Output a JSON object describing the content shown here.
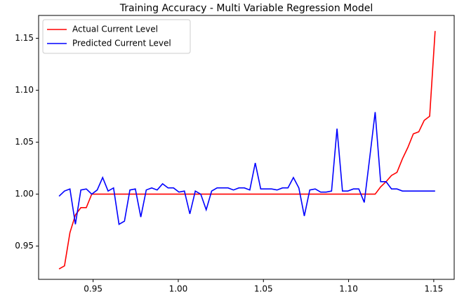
{
  "chart_data": {
    "type": "line",
    "title": "Training Accuracy - Multi Variable Regression Model",
    "x": [
      0.93,
      0.9332,
      0.9364,
      0.9396,
      0.9428,
      0.946,
      0.9492,
      0.9524,
      0.9556,
      0.9588,
      0.962,
      0.9652,
      0.9684,
      0.9716,
      0.9748,
      0.978,
      0.9812,
      0.9844,
      0.9876,
      0.9908,
      0.994,
      0.9972,
      1.0004,
      1.0036,
      1.0068,
      1.01,
      1.0132,
      1.0164,
      1.0196,
      1.0228,
      1.026,
      1.0292,
      1.0324,
      1.0356,
      1.0388,
      1.042,
      1.0452,
      1.0484,
      1.0516,
      1.0548,
      1.058,
      1.0612,
      1.0644,
      1.0676,
      1.0708,
      1.074,
      1.0772,
      1.0804,
      1.0836,
      1.0868,
      1.09,
      1.0932,
      1.0964,
      1.0996,
      1.1028,
      1.106,
      1.1092,
      1.1124,
      1.1156,
      1.1188,
      1.122,
      1.1252,
      1.1284,
      1.1316,
      1.1348,
      1.138,
      1.1412,
      1.1444,
      1.1476,
      1.1508
    ],
    "series": [
      {
        "name": "Actual Current Level",
        "color": "#ff0000",
        "values": [
          0.928,
          0.931,
          0.963,
          0.98,
          0.987,
          0.987,
          1.0,
          1.0,
          1.0,
          1.0,
          1.0,
          1.0,
          1.0,
          1.0,
          1.0,
          1.0,
          1.0,
          1.0,
          1.0,
          1.0,
          1.0,
          1.0,
          1.0,
          1.0,
          1.0,
          1.0,
          1.0,
          1.0,
          1.0,
          1.0,
          1.0,
          1.0,
          1.0,
          1.0,
          1.0,
          1.0,
          1.0,
          1.0,
          1.0,
          1.0,
          1.0,
          1.0,
          1.0,
          1.0,
          1.0,
          1.0,
          1.0,
          1.0,
          1.0,
          1.0,
          1.0,
          1.0,
          1.0,
          1.0,
          1.0,
          1.0,
          1.0,
          1.0,
          1.0,
          1.007,
          1.012,
          1.018,
          1.021,
          1.034,
          1.045,
          1.058,
          1.06,
          1.071,
          1.075,
          1.157
        ]
      },
      {
        "name": "Predicted Current Level",
        "color": "#0000ff",
        "values": [
          0.998,
          1.003,
          1.005,
          0.971,
          1.004,
          1.005,
          1.0,
          1.004,
          1.016,
          1.003,
          1.006,
          0.971,
          0.974,
          1.004,
          1.005,
          0.978,
          1.004,
          1.006,
          1.004,
          1.01,
          1.006,
          1.006,
          1.002,
          1.003,
          0.981,
          1.003,
          1.0,
          0.985,
          1.003,
          1.006,
          1.006,
          1.006,
          1.004,
          1.006,
          1.006,
          1.004,
          1.03,
          1.005,
          1.005,
          1.005,
          1.004,
          1.006,
          1.006,
          1.016,
          1.006,
          0.979,
          1.004,
          1.005,
          1.002,
          1.002,
          1.003,
          1.063,
          1.003,
          1.003,
          1.005,
          1.005,
          0.992,
          1.035,
          1.079,
          1.012,
          1.012,
          1.005,
          1.005,
          1.003,
          1.003,
          1.003,
          1.003,
          1.003,
          1.003,
          1.003
        ]
      }
    ],
    "xlim": [
      0.918,
      1.162
    ],
    "xticks": [
      0.95,
      {
        "value": 1,
        "label": "1.00"
      },
      1.05,
      {
        "value": 1.1,
        "label": "1.10"
      },
      1.15
    ],
    "ylim": [
      0.918,
      1.172
    ],
    "yticks": [
      0.95,
      {
        "value": 1,
        "label": "1.00"
      },
      1.05,
      {
        "value": 1.1,
        "label": "1.10"
      },
      1.15
    ],
    "legend": "upper left"
  }
}
